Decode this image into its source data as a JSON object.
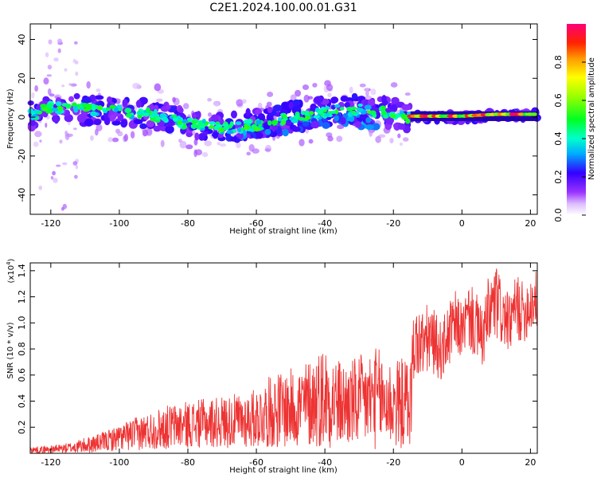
{
  "title": "C2E1.2024.100.00.01.G31",
  "chart_data": [
    {
      "type": "heatmap",
      "xlabel": "Height of straight line (km)",
      "ylabel": "Frequency (Hz)",
      "xlim": [
        -126,
        22
      ],
      "ylim": [
        -50,
        48
      ],
      "xticks": [
        -120,
        -100,
        -80,
        -60,
        -40,
        -20,
        0,
        20
      ],
      "yticks": [
        -40,
        -20,
        0,
        20,
        40
      ],
      "grid": false,
      "colorbar": {
        "label": "Normalized spectral amplitude",
        "ticks": [
          "0.0",
          "0.2",
          "0.4",
          "0.6",
          "0.8"
        ],
        "range": [
          0,
          1
        ],
        "colormap": "rainbow (white-purple-blue-cyan-green-yellow-orange-red-magenta)"
      },
      "ridge": {
        "description": "Doppler frequency band following the signal",
        "points": [
          {
            "x": -124,
            "y": 5
          },
          {
            "x": -110,
            "y": 4
          },
          {
            "x": -100,
            "y": 3
          },
          {
            "x": -90,
            "y": 1
          },
          {
            "x": -80,
            "y": -3
          },
          {
            "x": -70,
            "y": -6
          },
          {
            "x": -60,
            "y": -4
          },
          {
            "x": -50,
            "y": 0
          },
          {
            "x": -40,
            "y": 3
          },
          {
            "x": -30,
            "y": 4
          },
          {
            "x": -20,
            "y": 2
          },
          {
            "x": -15,
            "y": 0
          },
          {
            "x": -10,
            "y": 0
          },
          {
            "x": 0,
            "y": 0
          },
          {
            "x": 10,
            "y": 1
          },
          {
            "x": 22,
            "y": 1
          }
        ],
        "secondary_branch": [
          {
            "x": -65,
            "y": -8
          },
          {
            "x": -55,
            "y": -6
          },
          {
            "x": -45,
            "y": -3
          },
          {
            "x": -35,
            "y": 0
          },
          {
            "x": -25,
            "y": -4
          }
        ]
      }
    },
    {
      "type": "line",
      "xlabel": "Height of straight line (km)",
      "ylabel": "SNR (10 * v/v)",
      "y_multiplier": "(x10",
      "y_multiplier_exp": "4",
      "y_multiplier_close": ")",
      "xlim": [
        -126,
        22
      ],
      "ylim": [
        0,
        1.46
      ],
      "xticks": [
        -120,
        -100,
        -80,
        -60,
        -40,
        -20,
        0,
        20
      ],
      "yticks": [
        "0.2",
        "0.4",
        "0.6",
        "0.8",
        "1.0",
        "1.2",
        "1.4"
      ],
      "grid": false,
      "color": "#ee3333",
      "series": [
        {
          "x": [
            -126,
            -120,
            -115,
            -110,
            -105,
            -100,
            -95,
            -90,
            -85,
            -80,
            -75,
            -70,
            -65,
            -60,
            -55,
            -50,
            -45,
            -40,
            -35,
            -30,
            -25,
            -20,
            -15,
            -14,
            -12,
            -10,
            -8,
            -6,
            -4,
            -2,
            0,
            2,
            4,
            6,
            8,
            10,
            12,
            14,
            16,
            18,
            20,
            22
          ],
          "y": [
            0.03,
            0.04,
            0.05,
            0.07,
            0.1,
            0.13,
            0.15,
            0.18,
            0.22,
            0.27,
            0.28,
            0.3,
            0.32,
            0.33,
            0.38,
            0.42,
            0.45,
            0.48,
            0.5,
            0.5,
            0.5,
            0.5,
            0.45,
            1.1,
            1.0,
            1.05,
            1.0,
            0.9,
            0.95,
            1.0,
            1.0,
            1.1,
            1.0,
            0.9,
            1.15,
            1.2,
            1.1,
            1.05,
            1.2,
            1.15,
            1.3,
            1.25
          ],
          "min": [
            -126,
            -120,
            -115,
            -110,
            -105,
            -100,
            -95,
            -90,
            -85,
            -80,
            -75,
            -70,
            -65,
            -60,
            -55,
            -50,
            -45,
            -40,
            -35,
            -30,
            -25,
            -20,
            -15,
            -14,
            -12,
            -10,
            -8,
            -6,
            -4,
            -2,
            0,
            2,
            4,
            6,
            8,
            10,
            12,
            14,
            16,
            18,
            20,
            22
          ],
          "low": [
            0.0,
            0.0,
            0.0,
            0.0,
            0.01,
            0.02,
            0.02,
            0.03,
            0.03,
            0.04,
            0.04,
            0.04,
            0.04,
            0.04,
            0.04,
            0.04,
            0.04,
            0.04,
            0.04,
            0.03,
            0.03,
            0.03,
            0.03,
            0.55,
            0.55,
            0.6,
            0.6,
            0.55,
            0.65,
            0.7,
            0.75,
            0.8,
            0.7,
            0.65,
            0.75,
            0.85,
            0.8,
            0.78,
            0.85,
            0.85,
            0.9,
            0.95
          ],
          "high": [
            0.05,
            0.06,
            0.08,
            0.12,
            0.16,
            0.22,
            0.28,
            0.33,
            0.38,
            0.4,
            0.42,
            0.44,
            0.46,
            0.5,
            0.62,
            0.65,
            0.72,
            0.85,
            0.7,
            0.75,
            0.82,
            0.72,
            0.75,
            1.15,
            1.1,
            1.15,
            1.1,
            1.0,
            1.15,
            1.25,
            1.15,
            1.3,
            1.25,
            1.1,
            1.4,
            1.46,
            1.3,
            1.2,
            1.4,
            1.3,
            1.42,
            1.4
          ]
        }
      ]
    }
  ]
}
